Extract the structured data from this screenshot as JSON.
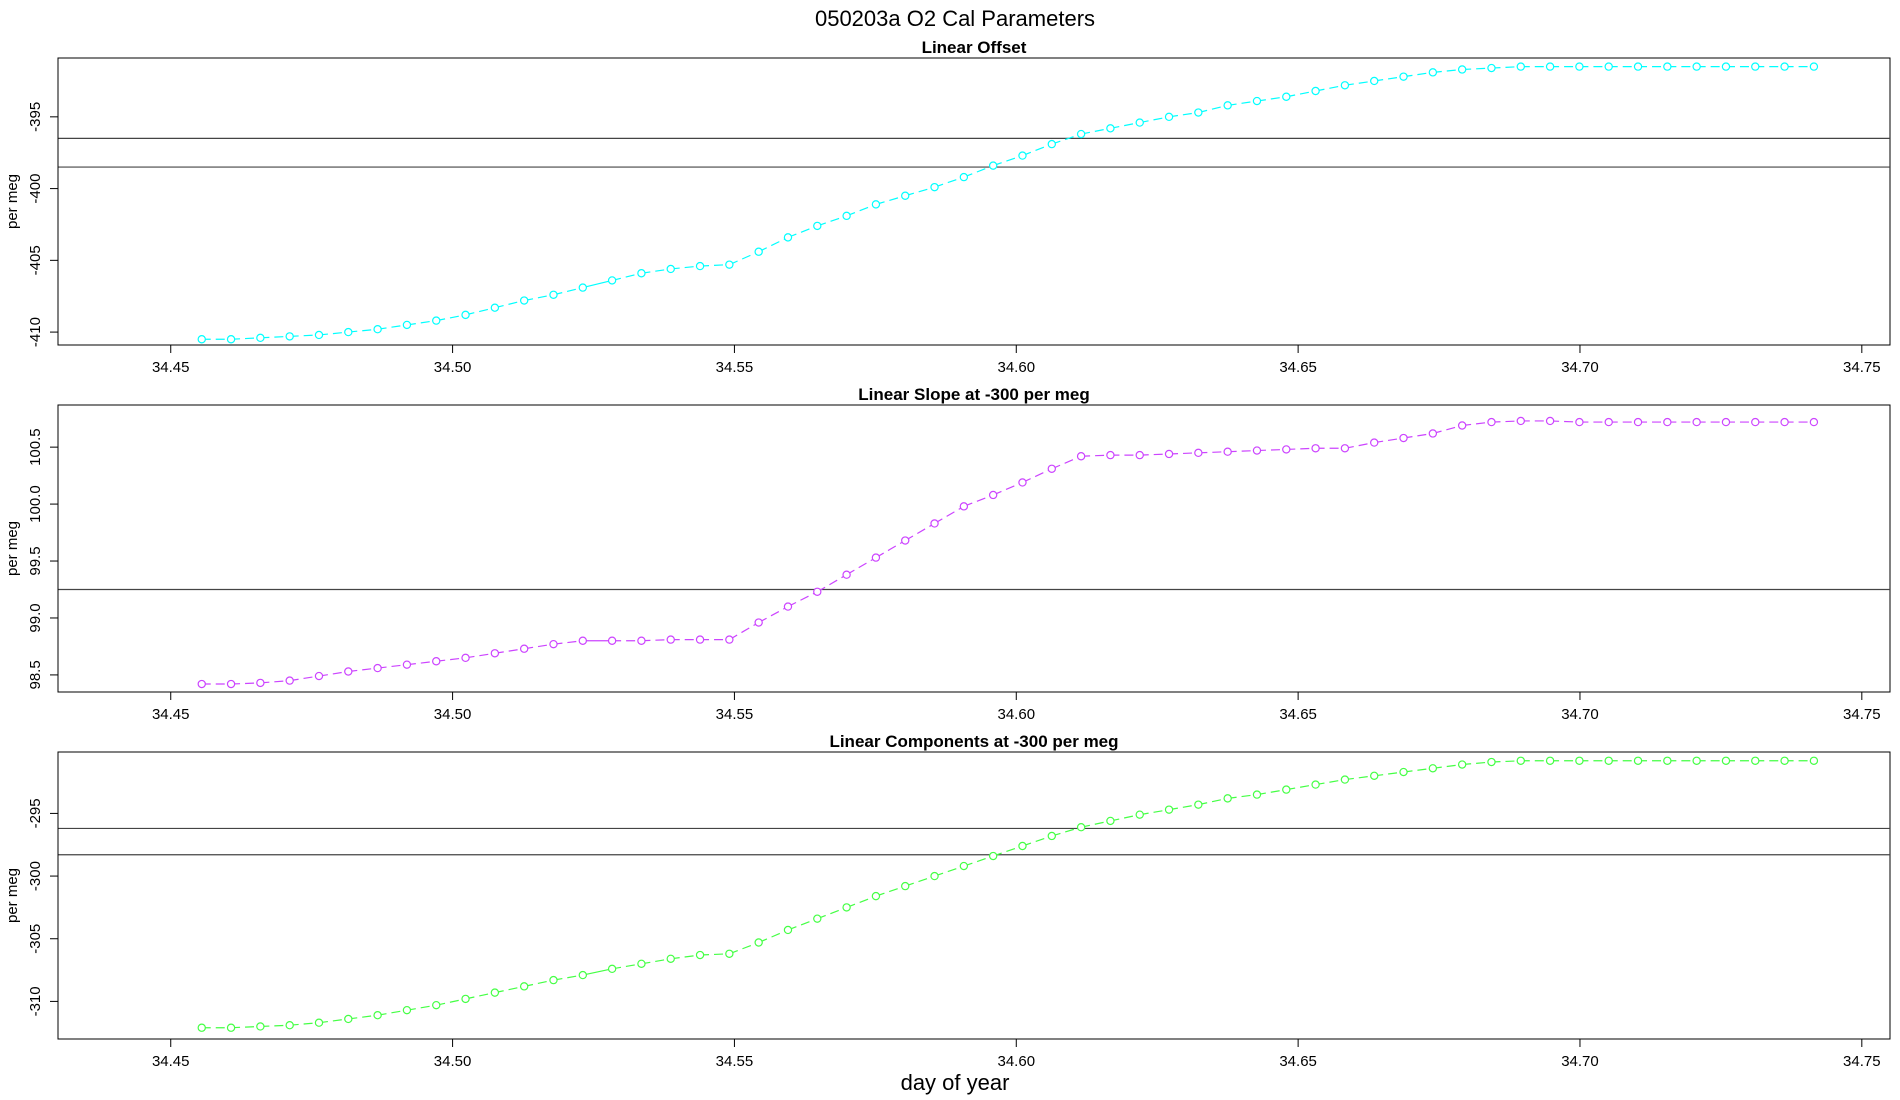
{
  "figure": {
    "title": "050203a   O2 Cal Parameters",
    "xlabel": "day of year"
  },
  "chart_data": [
    {
      "type": "line",
      "title": "Linear Offset",
      "ylabel": "per meg",
      "xlabel": "day of year",
      "color": "#00ffff",
      "xlim": [
        34.43,
        34.755
      ],
      "ylim": [
        -410.9,
        -390.9
      ],
      "xticks": [
        "34.45",
        "34.50",
        "34.55",
        "34.60",
        "34.65",
        "34.70",
        "34.75"
      ],
      "yticks": [
        "-395",
        "-400",
        "-405",
        "-410"
      ],
      "ytick_values": [
        -395,
        -400,
        -405,
        -410
      ],
      "hlines": [
        -396.5,
        -398.5
      ],
      "grid": false,
      "x": [
        34.4555,
        34.4607,
        34.4659,
        34.4711,
        34.4763,
        34.4815,
        34.4867,
        34.4919,
        34.4971,
        34.5023,
        34.5075,
        34.5127,
        34.5179,
        34.5231,
        34.5283,
        34.5335,
        34.5387,
        34.5439,
        34.5491,
        34.5543,
        34.5595,
        34.5647,
        34.5699,
        34.5751,
        34.5803,
        34.5855,
        34.5907,
        34.5959,
        34.6011,
        34.6063,
        34.6115,
        34.6167,
        34.6219,
        34.6271,
        34.6323,
        34.6375,
        34.6427,
        34.6479,
        34.6531,
        34.6583,
        34.6635,
        34.6687,
        34.6739,
        34.6791,
        34.6843,
        34.6895,
        34.6947,
        34.6999,
        34.7051,
        34.7103,
        34.7155,
        34.7207,
        34.7259,
        34.7311,
        34.7363,
        34.7415
      ],
      "y": [
        -410.5,
        -410.5,
        -410.4,
        -410.3,
        -410.2,
        -410.0,
        -409.8,
        -409.5,
        -409.2,
        -408.8,
        -408.3,
        -407.8,
        -407.4,
        -406.9,
        -406.4,
        -405.9,
        -405.6,
        -405.4,
        -405.3,
        -404.4,
        -403.4,
        -402.6,
        -401.9,
        -401.1,
        -400.5,
        -399.9,
        -399.2,
        -398.4,
        -397.7,
        -396.9,
        -396.2,
        -395.8,
        -395.4,
        -395.0,
        -394.7,
        -394.2,
        -393.9,
        -393.6,
        -393.2,
        -392.8,
        -392.5,
        -392.2,
        -391.9,
        -391.7,
        -391.6,
        -391.5,
        -391.5,
        -391.5,
        -391.5,
        -391.5,
        -391.5,
        -391.5,
        -391.5,
        -391.5,
        -391.5,
        -391.5
      ],
      "gaps_after_index": [
        13
      ]
    },
    {
      "type": "line",
      "title": "Linear Slope at -300 per meg",
      "ylabel": "per meg",
      "xlabel": "day of year",
      "color": "#cc44ff",
      "xlim": [
        34.43,
        34.755
      ],
      "ylim": [
        98.35,
        100.87
      ],
      "xticks": [
        "34.45",
        "34.50",
        "34.55",
        "34.60",
        "34.65",
        "34.70",
        "34.75"
      ],
      "yticks": [
        "100.5",
        "100.0",
        "99.5",
        "99.0",
        "98.5"
      ],
      "ytick_values": [
        100.5,
        100.0,
        99.5,
        99.0,
        98.5
      ],
      "hlines": [
        99.25
      ],
      "grid": false,
      "x": [
        34.4555,
        34.4607,
        34.4659,
        34.4711,
        34.4763,
        34.4815,
        34.4867,
        34.4919,
        34.4971,
        34.5023,
        34.5075,
        34.5127,
        34.5179,
        34.5231,
        34.5283,
        34.5335,
        34.5387,
        34.5439,
        34.5491,
        34.5543,
        34.5595,
        34.5647,
        34.5699,
        34.5751,
        34.5803,
        34.5855,
        34.5907,
        34.5959,
        34.6011,
        34.6063,
        34.6115,
        34.6167,
        34.6219,
        34.6271,
        34.6323,
        34.6375,
        34.6427,
        34.6479,
        34.6531,
        34.6583,
        34.6635,
        34.6687,
        34.6739,
        34.6791,
        34.6843,
        34.6895,
        34.6947,
        34.6999,
        34.7051,
        34.7103,
        34.7155,
        34.7207,
        34.7259,
        34.7311,
        34.7363,
        34.7415
      ],
      "y": [
        98.42,
        98.42,
        98.43,
        98.45,
        98.49,
        98.53,
        98.56,
        98.59,
        98.62,
        98.65,
        98.69,
        98.73,
        98.77,
        98.8,
        98.8,
        98.8,
        98.81,
        98.81,
        98.81,
        98.96,
        99.1,
        99.23,
        99.38,
        99.53,
        99.68,
        99.83,
        99.98,
        100.08,
        100.19,
        100.31,
        100.42,
        100.43,
        100.43,
        100.44,
        100.45,
        100.46,
        100.47,
        100.48,
        100.49,
        100.49,
        100.54,
        100.58,
        100.62,
        100.69,
        100.72,
        100.73,
        100.73,
        100.72,
        100.72,
        100.72,
        100.72,
        100.72,
        100.72,
        100.72,
        100.72,
        100.72
      ],
      "gaps_after_index": [
        13
      ]
    },
    {
      "type": "line",
      "title": "Linear Components at -300 per meg",
      "ylabel": "per meg",
      "xlabel": "day of year",
      "color": "#44ff44",
      "xlim": [
        34.43,
        34.755
      ],
      "ylim": [
        -313.0,
        -290.1
      ],
      "xticks": [
        "34.45",
        "34.50",
        "34.55",
        "34.60",
        "34.65",
        "34.70",
        "34.75"
      ],
      "yticks": [
        "-295",
        "-300",
        "-305",
        "-310"
      ],
      "ytick_values": [
        -295,
        -300,
        -305,
        -310
      ],
      "hlines": [
        -296.2,
        -298.3
      ],
      "grid": false,
      "x": [
        34.4555,
        34.4607,
        34.4659,
        34.4711,
        34.4763,
        34.4815,
        34.4867,
        34.4919,
        34.4971,
        34.5023,
        34.5075,
        34.5127,
        34.5179,
        34.5231,
        34.5283,
        34.5335,
        34.5387,
        34.5439,
        34.5491,
        34.5543,
        34.5595,
        34.5647,
        34.5699,
        34.5751,
        34.5803,
        34.5855,
        34.5907,
        34.5959,
        34.6011,
        34.6063,
        34.6115,
        34.6167,
        34.6219,
        34.6271,
        34.6323,
        34.6375,
        34.6427,
        34.6479,
        34.6531,
        34.6583,
        34.6635,
        34.6687,
        34.6739,
        34.6791,
        34.6843,
        34.6895,
        34.6947,
        34.6999,
        34.7051,
        34.7103,
        34.7155,
        34.7207,
        34.7259,
        34.7311,
        34.7363,
        34.7415
      ],
      "y": [
        -312.1,
        -312.1,
        -312.0,
        -311.9,
        -311.7,
        -311.4,
        -311.1,
        -310.7,
        -310.3,
        -309.8,
        -309.3,
        -308.8,
        -308.3,
        -307.9,
        -307.4,
        -307.0,
        -306.6,
        -306.3,
        -306.2,
        -305.3,
        -304.3,
        -303.4,
        -302.5,
        -301.6,
        -300.8,
        -300.0,
        -299.2,
        -298.4,
        -297.6,
        -296.8,
        -296.1,
        -295.6,
        -295.1,
        -294.7,
        -294.3,
        -293.8,
        -293.5,
        -293.1,
        -292.7,
        -292.3,
        -292.0,
        -291.7,
        -291.4,
        -291.1,
        -290.9,
        -290.8,
        -290.8,
        -290.8,
        -290.8,
        -290.8,
        -290.8,
        -290.8,
        -290.8,
        -290.8,
        -290.8,
        -290.8
      ],
      "gaps_after_index": [
        13
      ]
    }
  ]
}
